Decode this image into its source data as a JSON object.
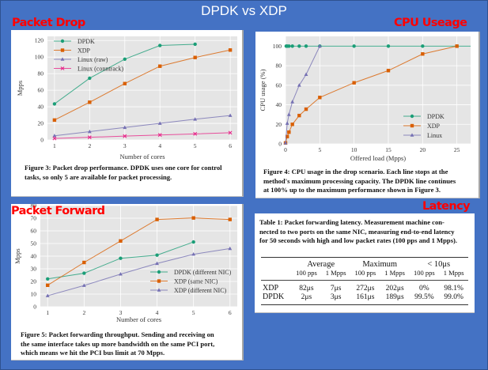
{
  "slide": {
    "title": "DPDK vs XDP",
    "sections": {
      "packet_drop": "Packet Drop",
      "cpu_usage": "CPU Useage",
      "packet_forward": "Packet Forward",
      "latency": "Latency"
    },
    "colors": {
      "background": "#4472c4",
      "section_label": "#ff0000",
      "dpdk": "#1b9e77",
      "xdp": "#d95f02",
      "linux": "#7570b3",
      "conntrack": "#e7298a",
      "plot_bg": "#e5e5e5"
    }
  },
  "captions": {
    "fig3": [
      "Figure 3:  Packet drop performance. DPDK uses one core for control",
      "tasks, so only 5 are available for packet processing."
    ],
    "fig4": [
      "Figure 4:  CPU usage in the drop scenario. Each line stops at the",
      "method's maximum processing capacity. The DPDK line continues",
      "at 100% up to the maximum performance shown in Figure 3."
    ],
    "fig5": [
      "Figure 5:  Packet forwarding throughput. Sending and receiving on",
      "the same interface takes up more bandwidth on the same PCI port,",
      "which means we hit the PCI bus limit at 70 Mpps."
    ],
    "table1": [
      "Table 1: Packet forwarding latency. Measurement machine con-",
      "nected to two ports on the same NIC, measuring end-to-end latency",
      "for 50 seconds with high and low packet rates (100 pps and 1 Mpps)."
    ]
  },
  "chart_data": [
    {
      "id": "fig3",
      "type": "line",
      "title": "Packet drop performance",
      "xlabel": "Number of cores",
      "ylabel": "Mpps",
      "xlim": [
        0.8,
        6.2
      ],
      "ylim": [
        0,
        125
      ],
      "xticks": [
        1,
        2,
        3,
        4,
        5,
        6
      ],
      "yticks": [
        0,
        20,
        40,
        60,
        80,
        100,
        120
      ],
      "grid": true,
      "legend": "top-left",
      "series": [
        {
          "name": "DPDK",
          "marker": "circle",
          "color": "#1b9e77",
          "x": [
            1,
            2,
            3,
            4,
            5
          ],
          "y": [
            43.5,
            74.5,
            97.5,
            114,
            115.5
          ]
        },
        {
          "name": "XDP",
          "marker": "square",
          "color": "#d95f02",
          "x": [
            1,
            2,
            3,
            4,
            5,
            6
          ],
          "y": [
            24,
            45.5,
            68,
            89,
            99.5,
            108.5
          ]
        },
        {
          "name": "Linux (raw)",
          "marker": "triangle",
          "color": "#7570b3",
          "x": [
            1,
            2,
            3,
            4,
            5,
            6
          ],
          "y": [
            5,
            10,
            15,
            20,
            25,
            29.5
          ]
        },
        {
          "name": "Linux (conntrack)",
          "marker": "x",
          "color": "#e7298a",
          "x": [
            1,
            2,
            3,
            4,
            5,
            6
          ],
          "y": [
            1.8,
            3.2,
            4.6,
            6,
            7.3,
            8.7
          ]
        }
      ]
    },
    {
      "id": "fig4",
      "type": "line",
      "title": "CPU usage in the drop scenario",
      "xlabel": "Offered load (Mpps)",
      "ylabel": "CPU usage (%)",
      "xlim": [
        0,
        27
      ],
      "ylim": [
        0,
        110
      ],
      "xticks": [
        0,
        5,
        10,
        15,
        20,
        25
      ],
      "yticks": [
        0,
        20,
        40,
        60,
        80,
        100
      ],
      "grid": true,
      "legend": "bottom-right",
      "series": [
        {
          "name": "DPDK",
          "marker": "circle",
          "color": "#1b9e77",
          "x": [
            0.1,
            0.25,
            0.5,
            1,
            2,
            3,
            5,
            10,
            15,
            20,
            25
          ],
          "y": [
            100,
            100,
            100,
            100,
            100,
            100,
            100,
            100,
            100,
            100,
            100
          ],
          "extends_to_edge": true
        },
        {
          "name": "XDP",
          "marker": "square",
          "color": "#d95f02",
          "x": [
            0,
            0.25,
            0.5,
            1,
            2,
            3,
            5,
            10,
            15,
            20,
            25
          ],
          "y": [
            1,
            7.5,
            12,
            20,
            29,
            35.5,
            47.5,
            62.5,
            75,
            92,
            100
          ]
        },
        {
          "name": "Linux",
          "marker": "triangle",
          "color": "#7570b3",
          "x": [
            0,
            0.25,
            0.5,
            1,
            2,
            3,
            5
          ],
          "y": [
            1,
            21,
            30,
            43,
            60,
            71,
            100
          ]
        }
      ]
    },
    {
      "id": "fig5",
      "type": "line",
      "title": "Packet forwarding throughput",
      "xlabel": "Number of cores",
      "ylabel": "Mpps",
      "xlim": [
        0.8,
        6.2
      ],
      "ylim": [
        0,
        80
      ],
      "xticks": [
        1,
        2,
        3,
        4,
        5,
        6
      ],
      "yticks": [
        0,
        10,
        20,
        30,
        40,
        50,
        60,
        70,
        80
      ],
      "grid": true,
      "legend": "bottom-right",
      "series": [
        {
          "name": "DPDK (different NIC)",
          "marker": "circle",
          "color": "#1b9e77",
          "x": [
            1,
            2,
            3,
            4,
            5
          ],
          "y": [
            22,
            26.5,
            38.3,
            40.8,
            51.2
          ]
        },
        {
          "name": "XDP (same NIC)",
          "marker": "square",
          "color": "#d95f02",
          "x": [
            1,
            2,
            3,
            4,
            5,
            6
          ],
          "y": [
            17,
            35,
            52,
            69,
            70.2,
            69
          ]
        },
        {
          "name": "XDP (different NIC)",
          "marker": "triangle",
          "color": "#7570b3",
          "x": [
            1,
            2,
            3,
            4,
            5,
            6
          ],
          "y": [
            8.7,
            16.8,
            25.8,
            34.2,
            41.5,
            46
          ]
        }
      ]
    },
    {
      "id": "table1",
      "type": "table",
      "title": "Packet forwarding latency",
      "groups": [
        "Average",
        "Maximum",
        "< 10μs"
      ],
      "subheaders": [
        "100 pps",
        "1 Mpps",
        "100 pps",
        "1 Mpps",
        "100 pps",
        "1 Mpps"
      ],
      "rows": [
        {
          "name": "XDP",
          "values": [
            "82μs",
            "7μs",
            "272μs",
            "202μs",
            "0%",
            "98.1%"
          ]
        },
        {
          "name": "DPDK",
          "values": [
            "2μs",
            "3μs",
            "161μs",
            "189μs",
            "99.5%",
            "99.0%"
          ]
        }
      ]
    }
  ]
}
